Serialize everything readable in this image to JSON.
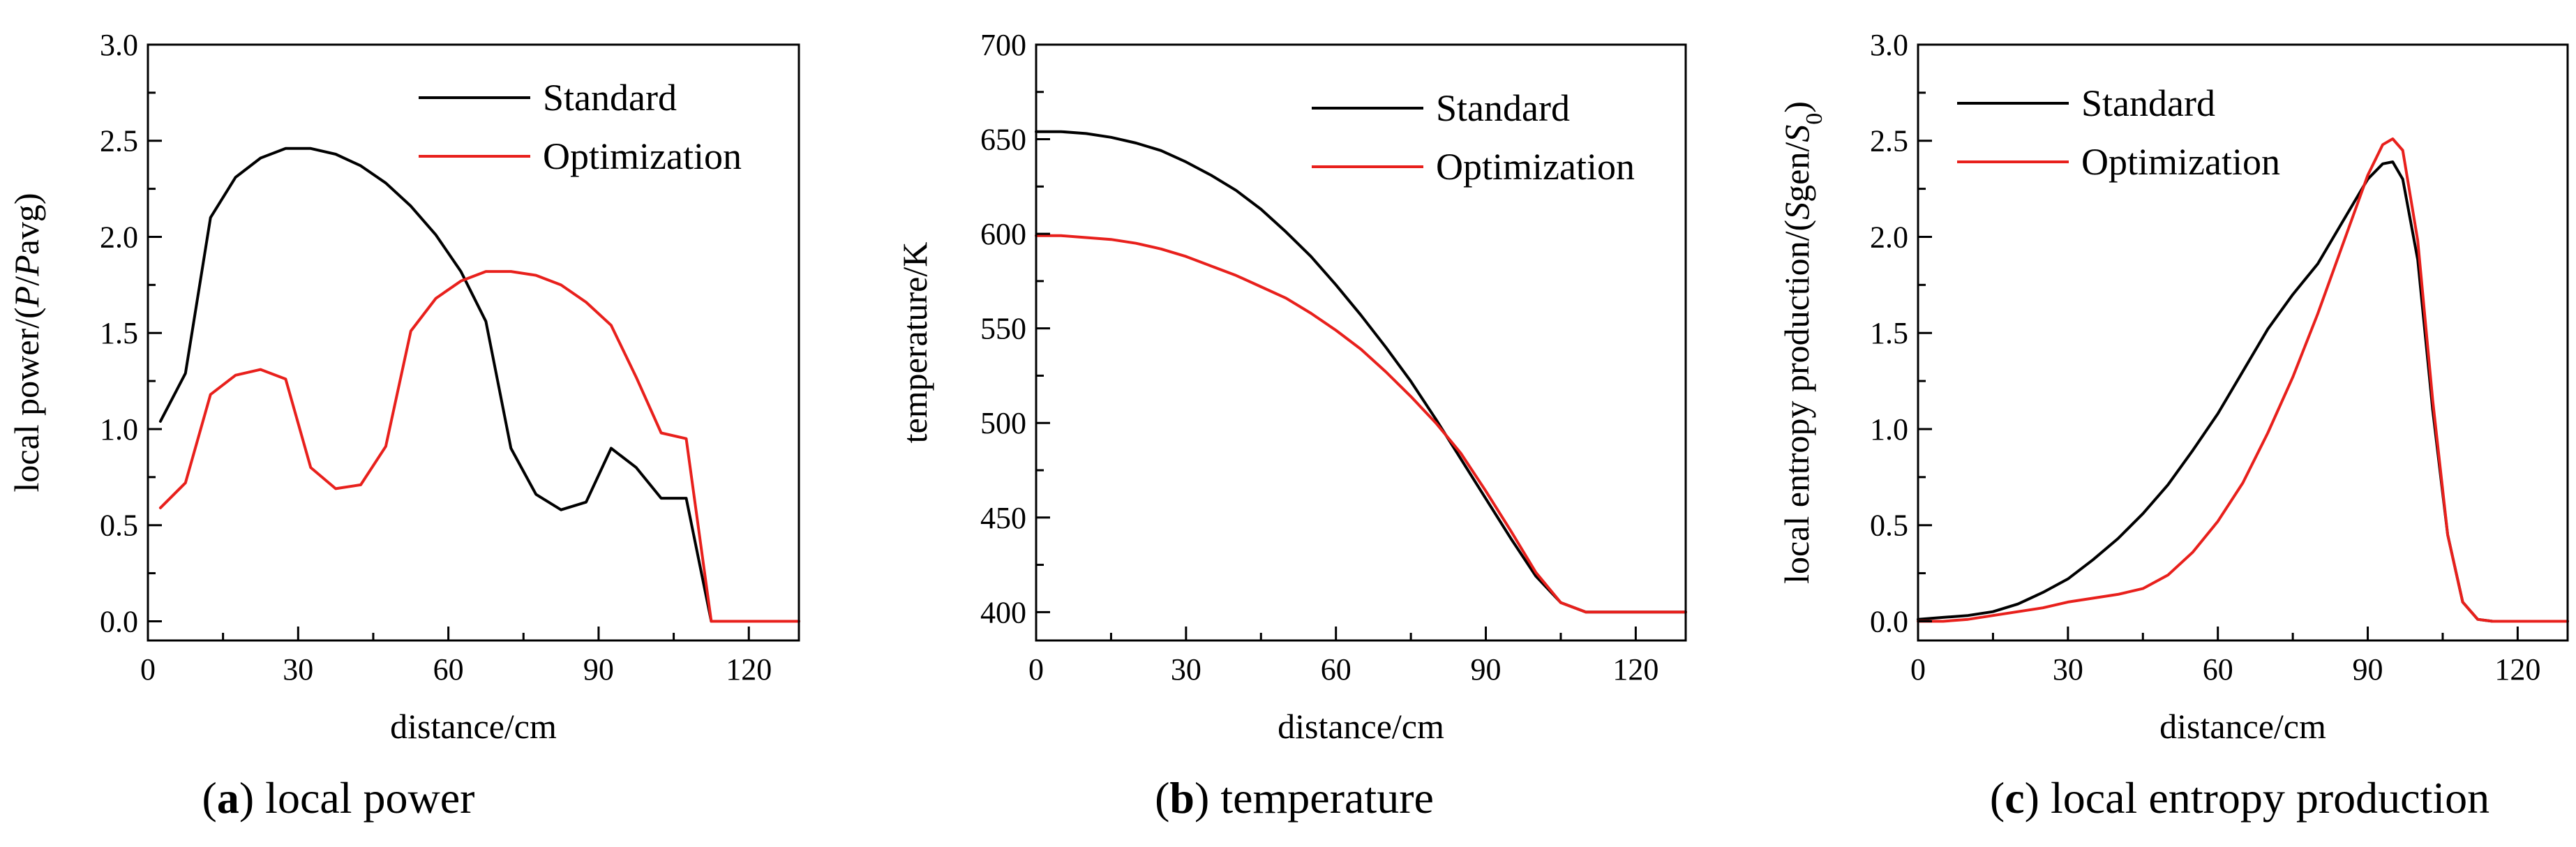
{
  "colors": {
    "standard": "#000000",
    "optimization": "#e8201c",
    "axis": "#000000"
  },
  "chart_data": [
    {
      "type": "line",
      "panel": "a",
      "caption": {
        "letter": "a",
        "text": "local power"
      },
      "xlabel": "distance/cm",
      "ylabel_parts": [
        {
          "t": "local power/(",
          "i": false
        },
        {
          "t": "P",
          "i": true
        },
        {
          "t": "/",
          "i": false
        },
        {
          "t": "P",
          "i": true
        },
        {
          "t": "avg)",
          "i": false
        }
      ],
      "xlim": [
        0,
        130
      ],
      "ylim": [
        -0.1,
        3.0
      ],
      "xticks": [
        0,
        30,
        60,
        90,
        120
      ],
      "xtick_labels": [
        "0",
        "30",
        "60",
        "90",
        "120"
      ],
      "yticks": [
        0.0,
        0.5,
        1.0,
        1.5,
        2.0,
        2.5,
        3.0
      ],
      "ytick_labels": [
        "0.0",
        "0.5",
        "1.0",
        "1.5",
        "2.0",
        "2.5",
        "3.0"
      ],
      "legend": "top-right",
      "series": [
        {
          "name": "Standard",
          "color_key": "standard",
          "x": [
            2.5,
            7.5,
            12.5,
            17.5,
            22.5,
            27.5,
            32.5,
            37.5,
            42.5,
            47.5,
            52.5,
            57.5,
            62.5,
            67.5,
            72.5,
            77.5,
            82.5,
            87.5,
            92.5,
            97.5,
            102.5,
            107.5,
            112.5,
            117.5,
            122.5,
            127.5,
            130
          ],
          "y": [
            1.04,
            1.29,
            2.1,
            2.31,
            2.41,
            2.46,
            2.46,
            2.43,
            2.37,
            2.28,
            2.16,
            2.01,
            1.82,
            1.56,
            0.9,
            0.66,
            0.58,
            0.62,
            0.9,
            0.8,
            0.64,
            0.64,
            0.0,
            0.0,
            0.0,
            0.0,
            0.0
          ]
        },
        {
          "name": "Optimization",
          "color_key": "optimization",
          "x": [
            2.5,
            7.5,
            12.5,
            17.5,
            22.5,
            27.5,
            32.5,
            37.5,
            42.5,
            47.5,
            52.5,
            57.5,
            62.5,
            67.5,
            72.5,
            77.5,
            82.5,
            87.5,
            92.5,
            97.5,
            102.5,
            107.5,
            112.5,
            117.5,
            122.5,
            127.5,
            130
          ],
          "y": [
            0.59,
            0.72,
            1.18,
            1.28,
            1.31,
            1.26,
            0.8,
            0.69,
            0.71,
            0.91,
            1.51,
            1.68,
            1.77,
            1.82,
            1.82,
            1.8,
            1.75,
            1.66,
            1.54,
            1.27,
            0.98,
            0.95,
            0.0,
            0.0,
            0.0,
            0.0,
            0.0
          ]
        }
      ]
    },
    {
      "type": "line",
      "panel": "b",
      "caption": {
        "letter": "b",
        "text": "temperature"
      },
      "xlabel": "distance/cm",
      "ylabel_parts": [
        {
          "t": "temperature/K",
          "i": false
        }
      ],
      "xlim": [
        0,
        130
      ],
      "ylim": [
        385,
        700
      ],
      "xticks": [
        0,
        30,
        60,
        90,
        120
      ],
      "xtick_labels": [
        "0",
        "30",
        "60",
        "90",
        "120"
      ],
      "yticks": [
        400,
        450,
        500,
        550,
        600,
        650,
        700
      ],
      "ytick_labels": [
        "400",
        "450",
        "500",
        "550",
        "600",
        "650",
        "700"
      ],
      "legend": "top-right",
      "series": [
        {
          "name": "Standard",
          "color_key": "standard",
          "x": [
            0,
            5,
            10,
            15,
            20,
            25,
            30,
            35,
            40,
            45,
            50,
            55,
            60,
            65,
            70,
            75,
            80,
            85,
            90,
            95,
            100,
            105,
            110,
            115,
            120,
            125,
            130
          ],
          "y": [
            654,
            654,
            653,
            651,
            648,
            644,
            638,
            631,
            623,
            613,
            601,
            588,
            573,
            557,
            540,
            522,
            502,
            481,
            460,
            439,
            419,
            405,
            400,
            400,
            400,
            400,
            400
          ]
        },
        {
          "name": "Optimization",
          "color_key": "optimization",
          "x": [
            0,
            5,
            10,
            15,
            20,
            25,
            30,
            35,
            40,
            45,
            50,
            55,
            60,
            65,
            70,
            75,
            80,
            85,
            90,
            95,
            100,
            105,
            110,
            115,
            120,
            125,
            130
          ],
          "y": [
            599,
            599,
            598,
            597,
            595,
            592,
            588,
            583,
            578,
            572,
            566,
            558,
            549,
            539,
            527,
            514,
            500,
            484,
            464,
            443,
            421,
            405,
            400,
            400,
            400,
            400,
            400
          ]
        }
      ]
    },
    {
      "type": "line",
      "panel": "c",
      "caption": {
        "letter": "c",
        "text": "local entropy production"
      },
      "xlabel": "distance/cm",
      "ylabel_parts": [
        {
          "t": "local entropy production/(",
          "i": false
        },
        {
          "t": "S",
          "i": true
        },
        {
          "t": "gen/",
          "i": false
        },
        {
          "t": "S",
          "i": true
        },
        {
          "t": "0",
          "i": false,
          "sub": true
        },
        {
          "t": ")",
          "i": false
        }
      ],
      "xlim": [
        0,
        130
      ],
      "ylim": [
        -0.1,
        3.0
      ],
      "xticks": [
        0,
        30,
        60,
        90,
        120
      ],
      "xtick_labels": [
        "0",
        "30",
        "60",
        "90",
        "120"
      ],
      "yticks": [
        0.0,
        0.5,
        1.0,
        1.5,
        2.0,
        2.5,
        3.0
      ],
      "ytick_labels": [
        "0.0",
        "0.5",
        "1.0",
        "1.5",
        "2.0",
        "2.5",
        "3.0"
      ],
      "legend": "top-left",
      "series": [
        {
          "name": "Standard",
          "color_key": "standard",
          "x": [
            0,
            5,
            10,
            15,
            20,
            25,
            30,
            35,
            40,
            45,
            50,
            55,
            60,
            65,
            70,
            75,
            80,
            85,
            90,
            93,
            95,
            97,
            100,
            103,
            106,
            109,
            112,
            115,
            120,
            125,
            130
          ],
          "y": [
            0.01,
            0.02,
            0.03,
            0.05,
            0.09,
            0.15,
            0.22,
            0.32,
            0.43,
            0.56,
            0.71,
            0.89,
            1.08,
            1.3,
            1.52,
            1.7,
            1.86,
            2.08,
            2.3,
            2.38,
            2.39,
            2.3,
            1.88,
            1.1,
            0.45,
            0.1,
            0.01,
            0.0,
            0.0,
            0.0,
            0.0
          ]
        },
        {
          "name": "Optimization",
          "color_key": "optimization",
          "x": [
            0,
            5,
            10,
            15,
            20,
            25,
            30,
            35,
            40,
            45,
            50,
            55,
            60,
            65,
            70,
            75,
            80,
            85,
            90,
            93,
            95,
            97,
            100,
            103,
            106,
            109,
            112,
            115,
            120,
            125,
            130
          ],
          "y": [
            0.0,
            0.0,
            0.01,
            0.03,
            0.05,
            0.07,
            0.1,
            0.12,
            0.14,
            0.17,
            0.24,
            0.36,
            0.52,
            0.72,
            0.98,
            1.27,
            1.6,
            1.96,
            2.32,
            2.48,
            2.51,
            2.45,
            1.98,
            1.15,
            0.45,
            0.1,
            0.01,
            0.0,
            0.0,
            0.0,
            0.0
          ]
        }
      ]
    }
  ]
}
